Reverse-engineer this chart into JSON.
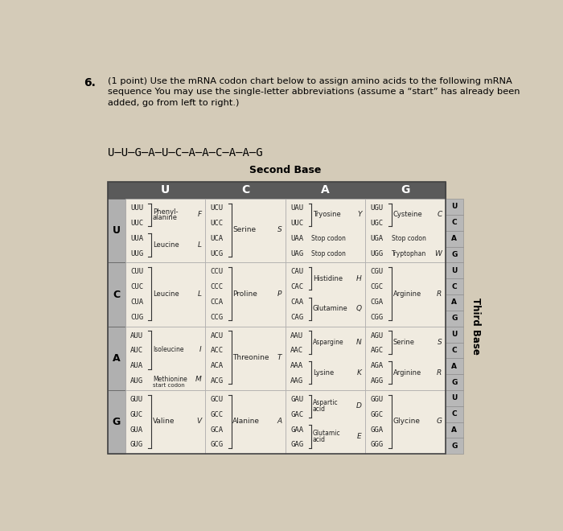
{
  "title_number": "6.",
  "title_text": "(1 point) Use the mRNA codon chart below to assign amino acids to the following mRNA\nsequence You may use the single-letter abbreviations (assume a “start” has already been\nadded, go from left to right.)",
  "sequence": "U–U–G–A–U–C–A–A–C–A–A–G",
  "second_base_label": "Second Base",
  "third_base_label": "Third Base",
  "col_headers": [
    "U",
    "C",
    "A",
    "G"
  ],
  "row_headers": [
    "U",
    "C",
    "A",
    "G"
  ],
  "header_bg": "#5a5a5a",
  "row_header_bg": "#b0b0b0",
  "cell_bg_light": "#f0ebe0",
  "cell_bg_dark": "#e8e3d8",
  "third_base_bg": "#b8b8b8",
  "bg_color": "#d8d0c0",
  "fig_bg": "#d4cbb8"
}
